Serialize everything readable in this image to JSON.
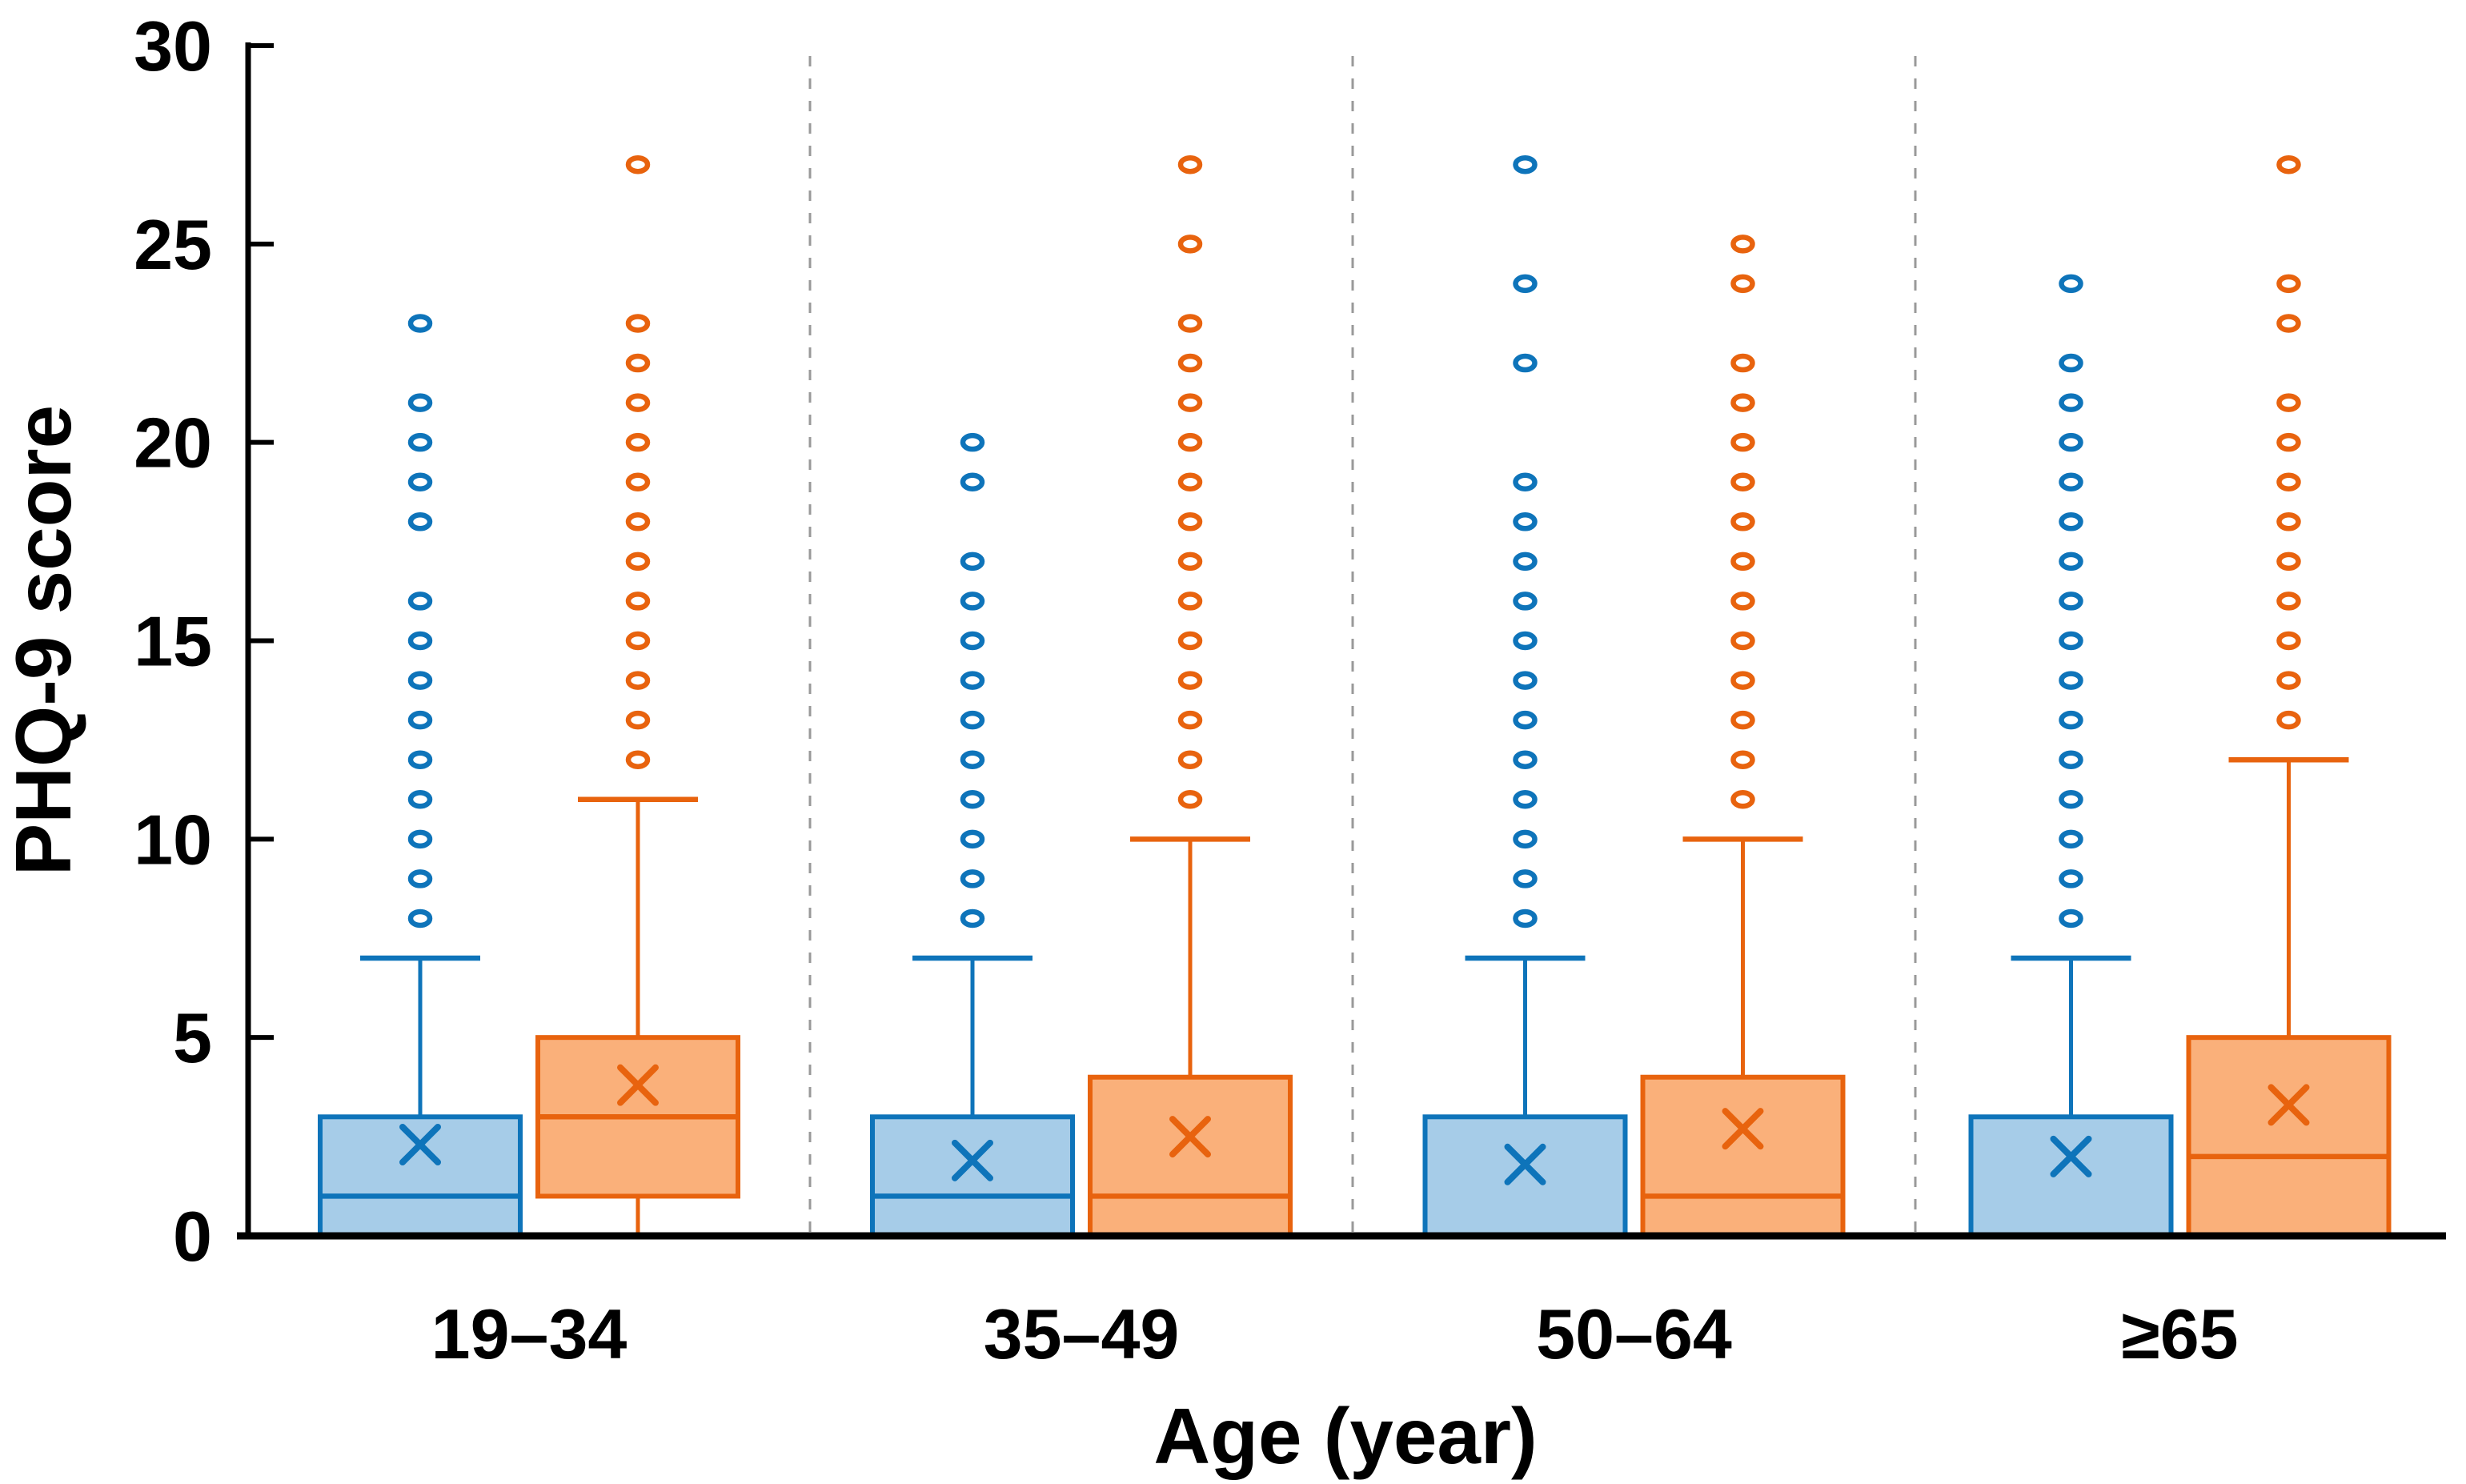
{
  "figure": {
    "background": "#ffffff"
  },
  "colors": {
    "blue_stroke": "#0e74ba",
    "blue_fill": "#a6cce8",
    "orange_stroke": "#e8630e",
    "orange_fill": "#fab07a",
    "axis": "#000000",
    "separator": "#999999",
    "text": "#000000",
    "outlier_hole": "#ffffff"
  },
  "chart_data": {
    "type": "grouped_boxplot",
    "title": "",
    "xlabel": "Age (year)",
    "ylabel": "PHQ-9 score",
    "ylim": [
      0,
      30
    ],
    "yticks": [
      0,
      5,
      10,
      15,
      20,
      25,
      30
    ],
    "grid": "dashed vertical separators between age groups",
    "legend": "none",
    "categories": [
      "19–34",
      "35–49",
      "50–64",
      "≥65"
    ],
    "series": [
      {
        "name": "blue",
        "stroke": "#0e74ba",
        "fill": "#a6cce8",
        "boxes": [
          {
            "category": "19–34",
            "q1": 0,
            "median": 1,
            "q3": 3,
            "whisker_high": 7,
            "mean": 2.3,
            "outliers": [
              8,
              9,
              10,
              11,
              12,
              13,
              14,
              15,
              16,
              18,
              19,
              20,
              21,
              23
            ]
          },
          {
            "category": "35–49",
            "q1": 0,
            "median": 1,
            "q3": 3,
            "whisker_high": 7,
            "mean": 1.9,
            "outliers": [
              8,
              9,
              10,
              11,
              12,
              13,
              14,
              15,
              16,
              17,
              19,
              20
            ]
          },
          {
            "category": "50–64",
            "q1": 0,
            "median": 0,
            "q3": 3,
            "whisker_high": 7,
            "mean": 1.8,
            "outliers": [
              8,
              9,
              10,
              11,
              12,
              13,
              14,
              15,
              16,
              17,
              18,
              19,
              22,
              24,
              27
            ]
          },
          {
            "category": "≥65",
            "q1": 0,
            "median": 0,
            "q3": 3,
            "whisker_high": 7,
            "mean": 2.0,
            "outliers": [
              8,
              9,
              10,
              11,
              12,
              13,
              14,
              15,
              16,
              17,
              18,
              19,
              20,
              21,
              22,
              24
            ]
          }
        ]
      },
      {
        "name": "orange",
        "stroke": "#e8630e",
        "fill": "#fab07a",
        "boxes": [
          {
            "category": "19–34",
            "q1": 1,
            "median": 3,
            "q3": 5,
            "whisker_low": 0,
            "whisker_high": 11,
            "mean": 3.8,
            "outliers": [
              12,
              13,
              14,
              15,
              16,
              17,
              18,
              19,
              20,
              21,
              22,
              23,
              27
            ]
          },
          {
            "category": "35–49",
            "q1": 0,
            "median": 1,
            "q3": 4,
            "whisker_high": 10,
            "mean": 2.5,
            "outliers": [
              11,
              12,
              13,
              14,
              15,
              16,
              17,
              18,
              19,
              20,
              21,
              22,
              23,
              25,
              27
            ]
          },
          {
            "category": "50–64",
            "q1": 0,
            "median": 1,
            "q3": 4,
            "whisker_high": 10,
            "mean": 2.7,
            "outliers": [
              11,
              12,
              13,
              14,
              15,
              16,
              17,
              18,
              19,
              20,
              21,
              22,
              24,
              25
            ]
          },
          {
            "category": "≥65",
            "q1": 0,
            "median": 2,
            "q3": 5,
            "whisker_high": 12,
            "mean": 3.3,
            "outliers": [
              13,
              14,
              15,
              16,
              17,
              18,
              19,
              20,
              21,
              23,
              24,
              27
            ]
          }
        ]
      }
    ]
  }
}
